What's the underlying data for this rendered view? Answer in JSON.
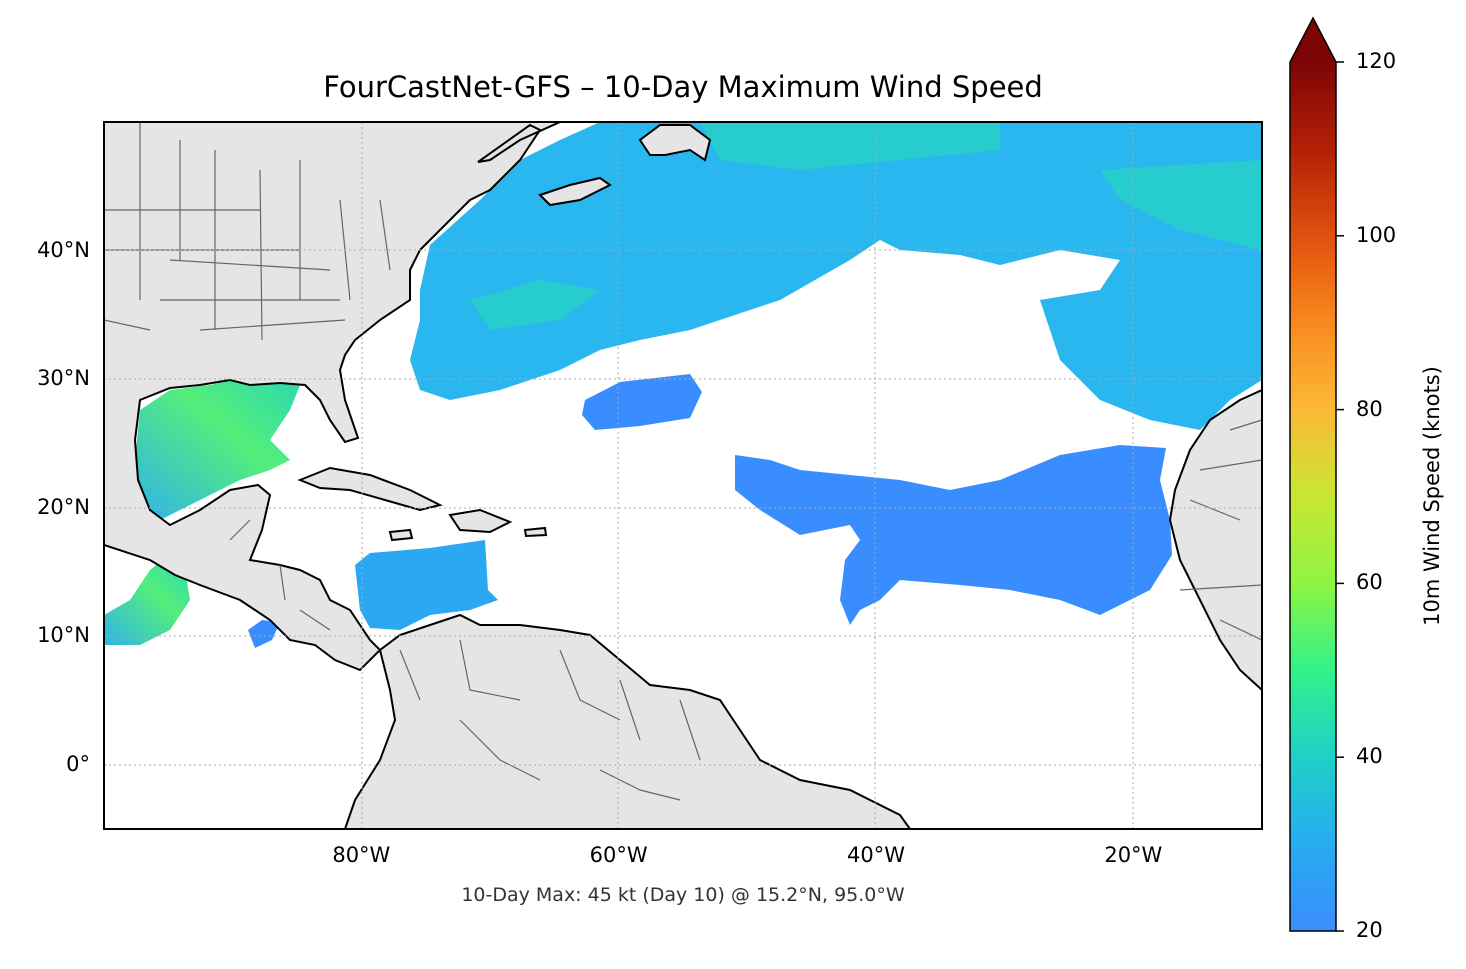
{
  "map": {
    "title": "FourCastNet-GFS – 10-Day Maximum Wind Speed",
    "subtitle": "10-Day Max: 45 kt (Day 10) @ 15.2°N, 95.0°W",
    "lat_labels": [
      "40°N",
      "30°N",
      "20°N",
      "10°N",
      "0°"
    ],
    "lon_labels": [
      "80°W",
      "60°W",
      "40°W",
      "20°W"
    ],
    "lat_values": [
      40,
      30,
      20,
      10,
      0
    ],
    "lon_values": [
      -80,
      -60,
      -40,
      -20
    ],
    "extent": {
      "lon_min": -100,
      "lon_max": -10,
      "lat_min": -5,
      "lat_max": 50
    },
    "gridlines": true,
    "land_color": "#e5e5e5",
    "ocean_color": "#ffffff"
  },
  "colorbar": {
    "label": "10m Wind Speed (knots)",
    "ticks": [
      20,
      40,
      60,
      80,
      100,
      120
    ],
    "tick_labels": [
      "20",
      "40",
      "60",
      "80",
      "100",
      "120"
    ],
    "range": [
      20,
      120
    ],
    "colors": [
      "#3a8dff",
      "#1fc8d8",
      "#25f08a",
      "#9ef532",
      "#dfd633",
      "#fdab33",
      "#f6731b",
      "#d53d0b",
      "#a31603",
      "#740404"
    ],
    "extend": "max"
  },
  "wind_max": {
    "value_kt": 45,
    "day": 10,
    "lat": 15.2,
    "lon": -95.0
  }
}
